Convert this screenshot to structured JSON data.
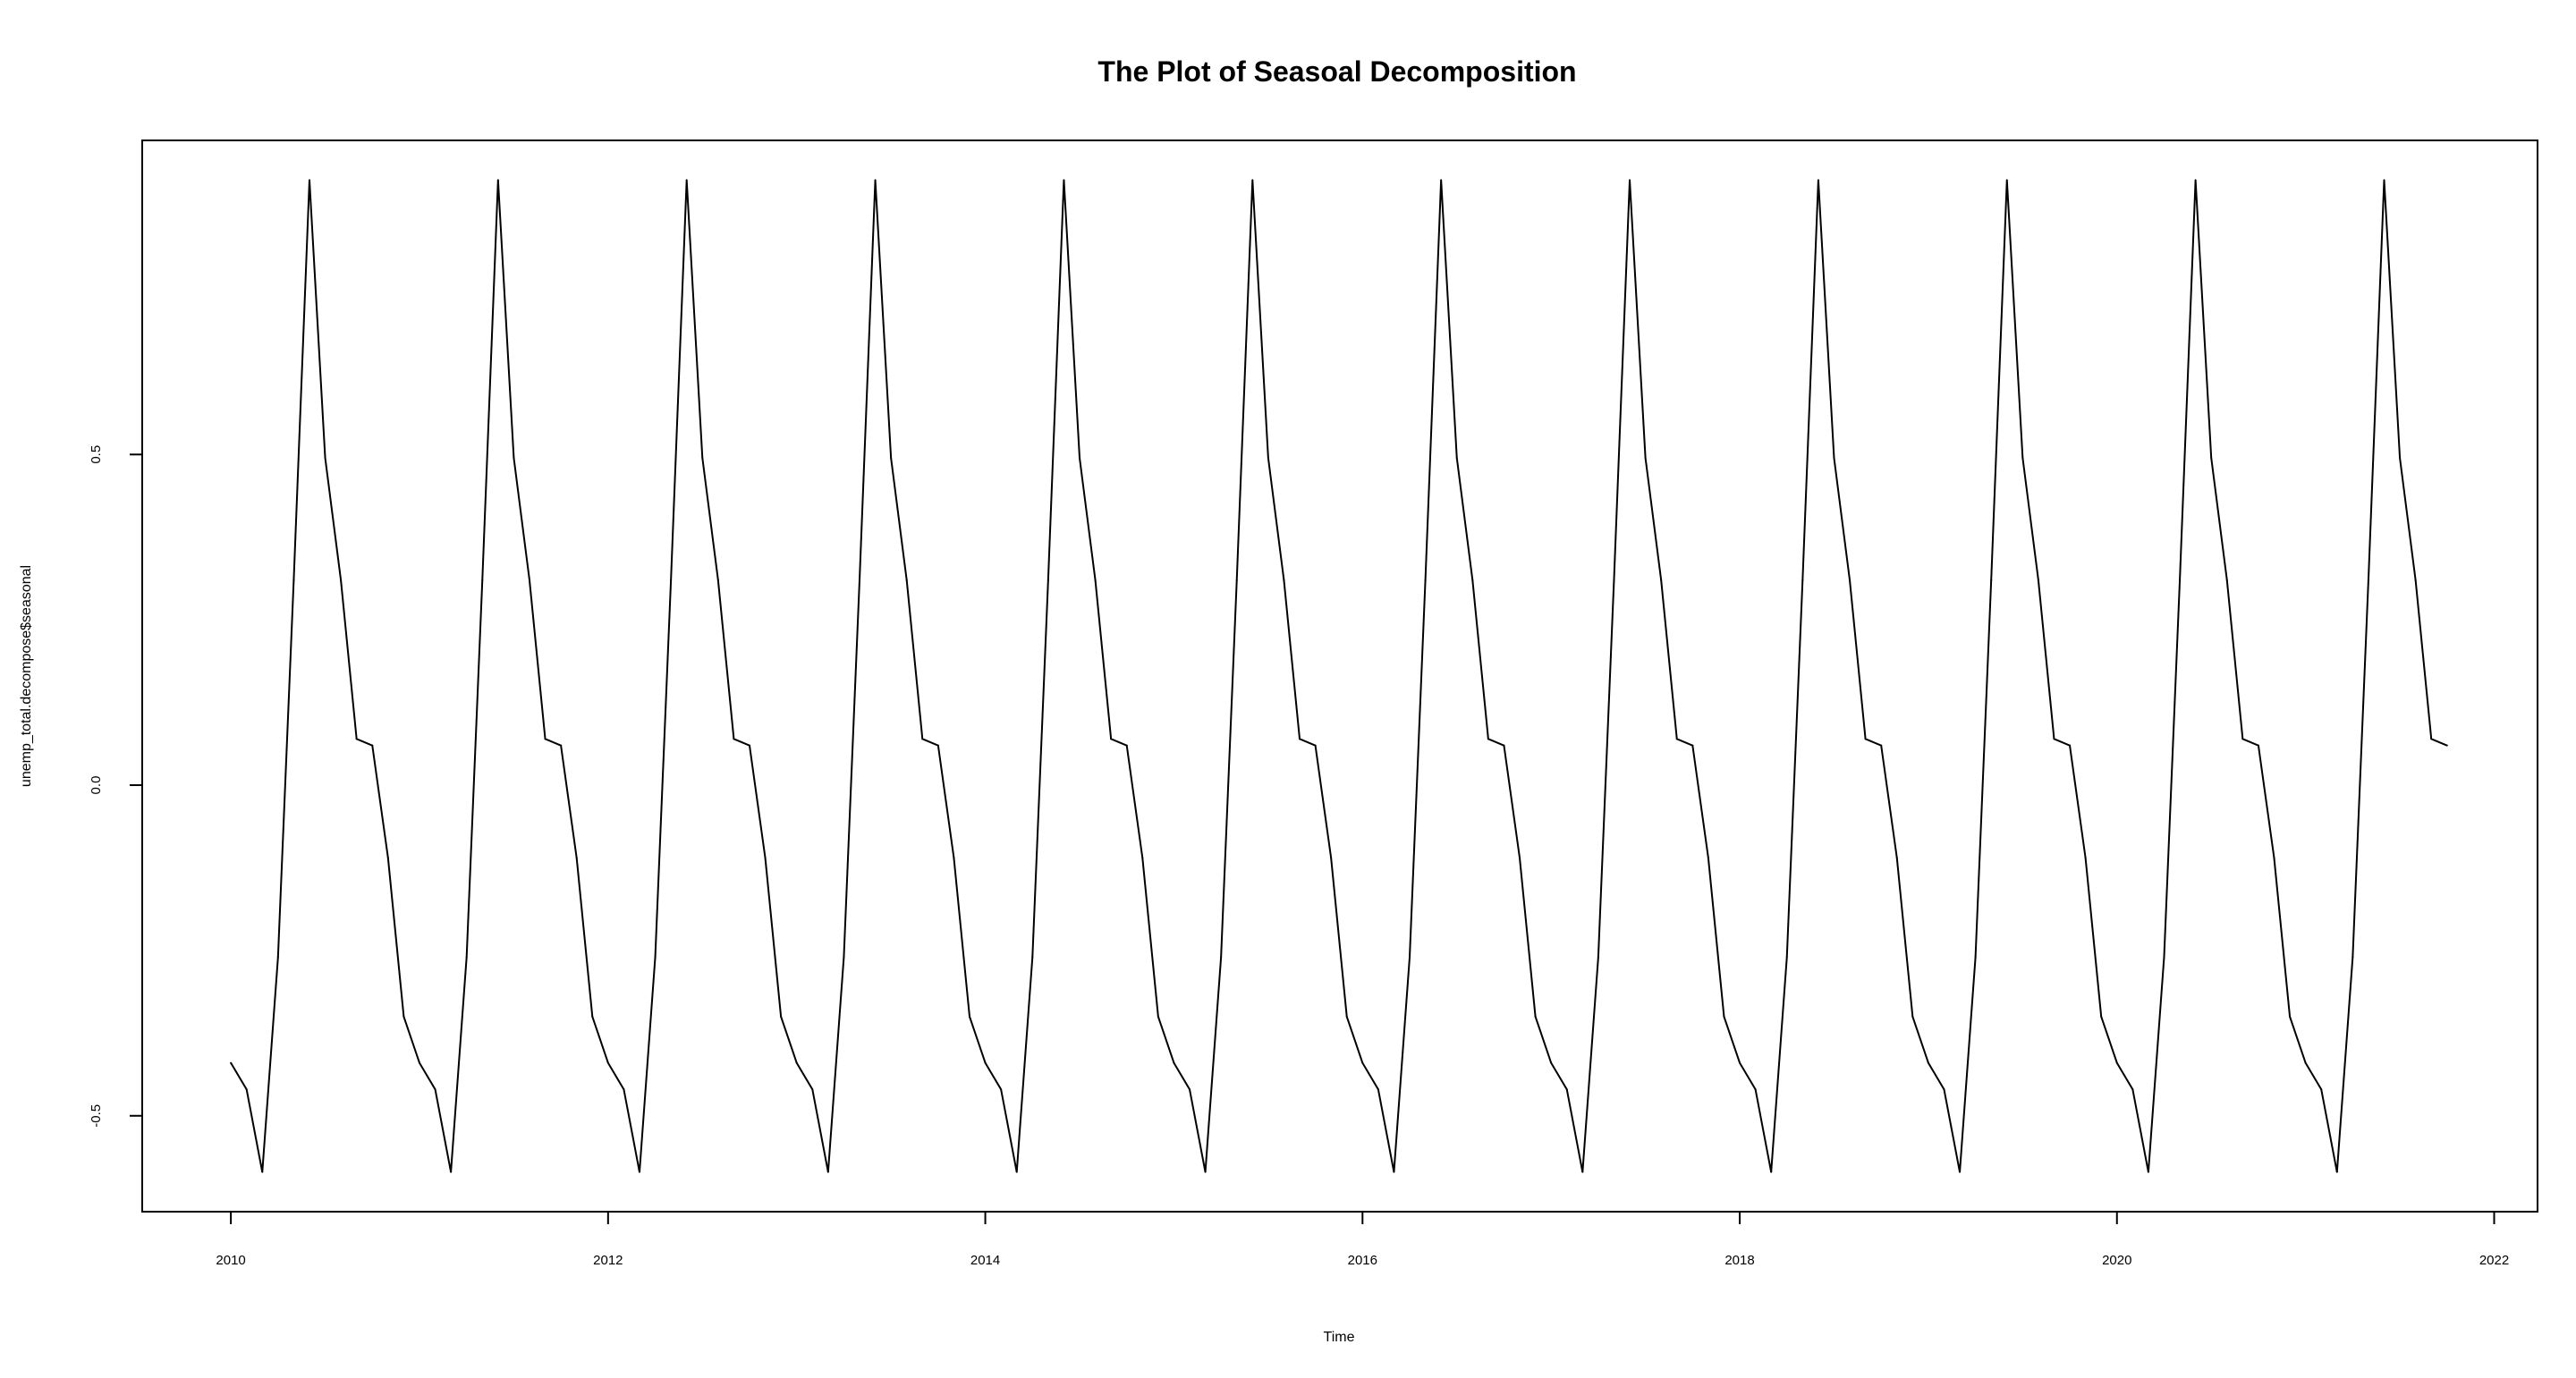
{
  "chart_data": {
    "type": "line",
    "title": "The Plot of Seasoal Decomposition",
    "xlabel": "Time",
    "ylabel": "unemp_total.decompose$seasonal",
    "xlim": [
      2009.53,
      2022.23
    ],
    "ylim": [
      -0.645,
      0.975
    ],
    "grid": false,
    "legend": "none",
    "x_ticks": [
      2010,
      2012,
      2014,
      2016,
      2018,
      2020,
      2022
    ],
    "x_tick_labels": [
      "2010",
      "2012",
      "2014",
      "2016",
      "2018",
      "2020",
      "2022"
    ],
    "y_ticks": [
      -0.5,
      0.0,
      0.5
    ],
    "y_tick_labels": [
      "-0.5",
      "0.0",
      "0.5"
    ],
    "series": [
      {
        "name": "seasonal",
        "start_year": 2010,
        "frequency": 12,
        "n_observations": 142,
        "seasonal_pattern": [
          -0.42,
          -0.46,
          -0.585,
          -0.26,
          0.31,
          0.915,
          0.495,
          0.31,
          0.07,
          0.06,
          -0.11,
          -0.35
        ],
        "color": "#000000"
      }
    ]
  }
}
